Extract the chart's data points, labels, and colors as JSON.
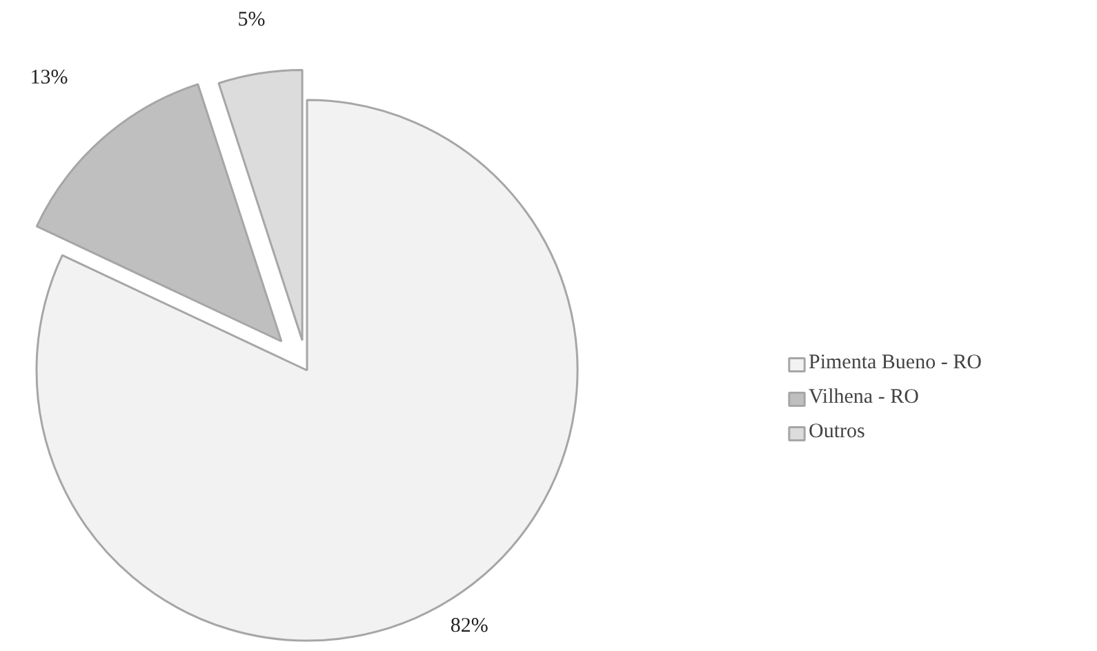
{
  "chart_data": {
    "type": "pie",
    "categories": [
      "Pimenta Bueno - RO",
      "Vilhena - RO",
      "Outros"
    ],
    "values": [
      82,
      13,
      5
    ],
    "colors": [
      "#f2f2f2",
      "#bfbfbf",
      "#dcdcdc"
    ],
    "value_labels": [
      "82%",
      "13%",
      "5%"
    ],
    "legend": "right"
  }
}
